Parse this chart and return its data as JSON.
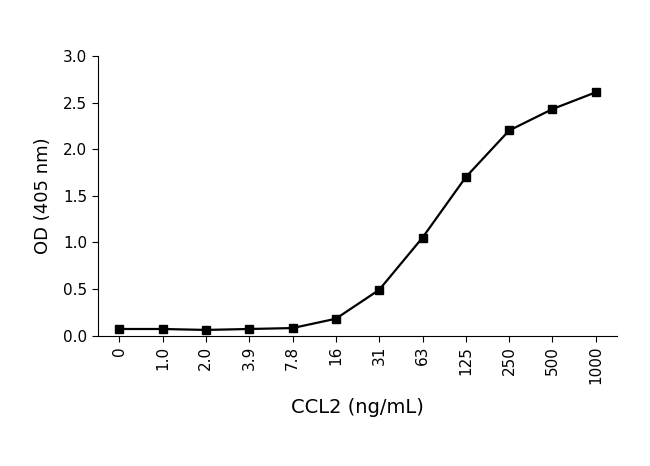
{
  "x_labels": [
    "0",
    "1.0",
    "2.0",
    "3.9",
    "7.8",
    "16",
    "31",
    "63",
    "125",
    "250",
    "500",
    "1000"
  ],
  "x_positions": [
    0,
    1,
    2,
    3,
    4,
    5,
    6,
    7,
    8,
    9,
    10,
    11
  ],
  "y_values": [
    0.07,
    0.07,
    0.06,
    0.07,
    0.08,
    0.18,
    0.49,
    1.05,
    1.7,
    2.2,
    2.43,
    2.61
  ],
  "line_color": "#000000",
  "marker": "s",
  "marker_size": 6,
  "line_width": 1.6,
  "xlabel": "CCL2 (ng/mL)",
  "ylabel": "OD (405 nm)",
  "ylim": [
    0.0,
    3.0
  ],
  "yticks": [
    0.0,
    0.5,
    1.0,
    1.5,
    2.0,
    2.5,
    3.0
  ],
  "background_color": "#ffffff",
  "axis_fontsize": 13,
  "tick_fontsize": 11,
  "xlabel_fontsize": 14,
  "ylabel_fontsize": 13
}
